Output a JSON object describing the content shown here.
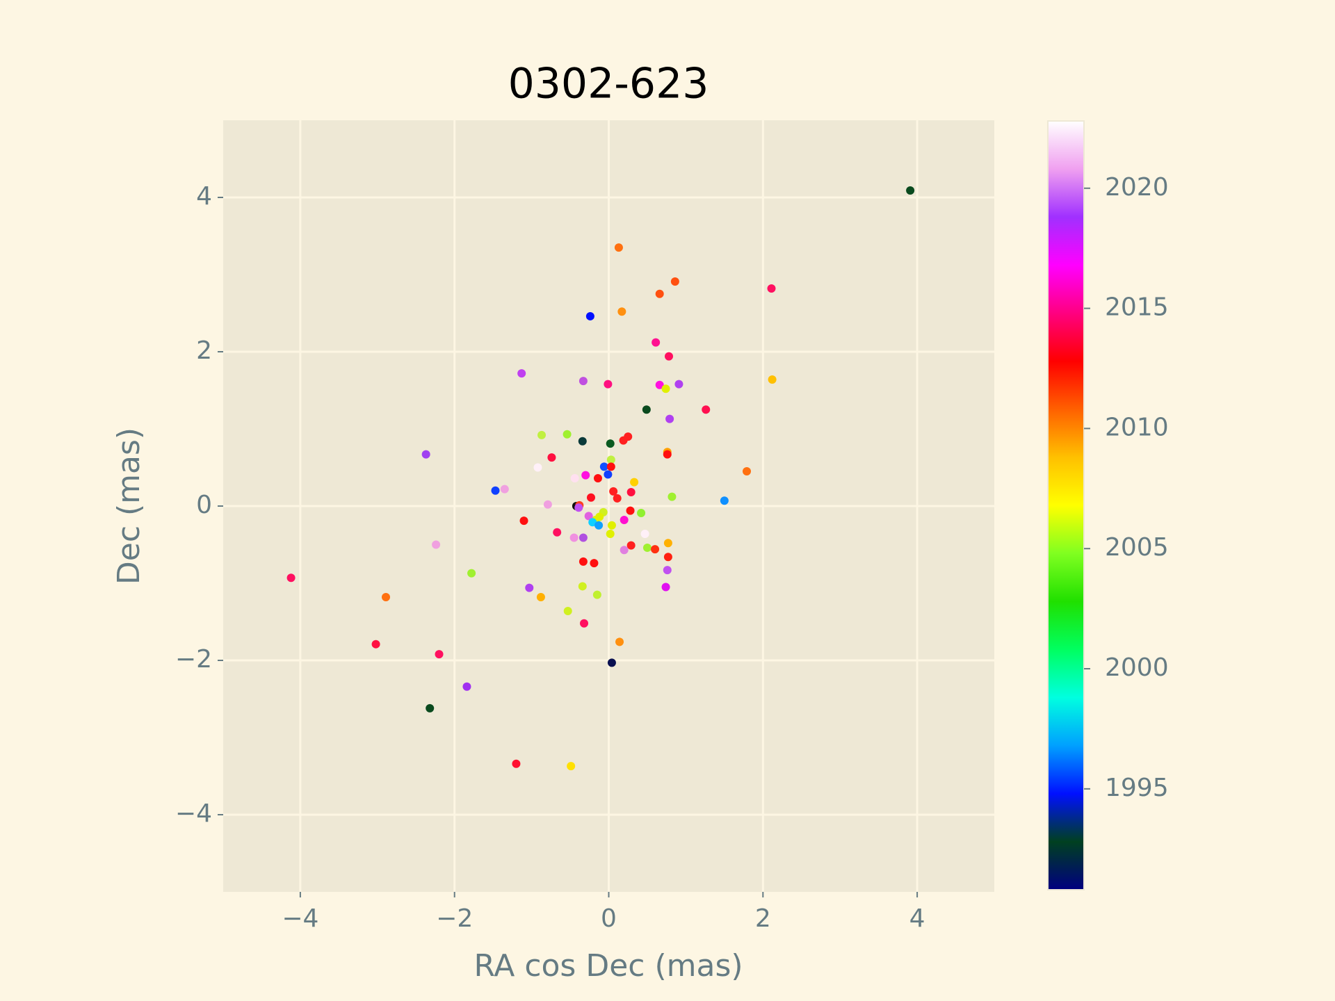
{
  "chart_data": {
    "type": "scatter",
    "title": "0302-623",
    "x_label": "RA cos Dec (mas)",
    "y_label": "Dec (mas)",
    "xlim": [
      -5,
      5
    ],
    "ylim": [
      -5,
      5
    ],
    "xticks": [
      {
        "value": -4,
        "label": "−4"
      },
      {
        "value": -2,
        "label": "−2"
      },
      0,
      2,
      4
    ],
    "yticks": [
      {
        "value": -4,
        "label": "−4"
      },
      {
        "value": -2,
        "label": "−2"
      },
      0,
      2,
      4
    ],
    "grid": true,
    "x": [
      3.91,
      0.13,
      0.86,
      2.11,
      0.66,
      -0.24,
      0.17,
      0.61,
      0.78,
      -1.13,
      -0.33,
      -0.01,
      0.66,
      0.91,
      0.74,
      2.12,
      0.49,
      1.26,
      0.79,
      -0.87,
      -0.54,
      -0.34,
      0.02,
      0.25,
      0.19,
      -2.37,
      0.76,
      0.76,
      -0.74,
      0.03,
      -0.06,
      0.03,
      -0.92,
      -0.01,
      -0.3,
      -0.44,
      -0.14,
      0.33,
      -1.47,
      -1.35,
      0.06,
      0.29,
      -0.23,
      0.11,
      0.82,
      1.5,
      1.79,
      -0.79,
      -0.42,
      -0.38,
      -0.39,
      -0.07,
      0.28,
      0.42,
      -1.1,
      -0.12,
      -0.17,
      -0.26,
      0.2,
      -0.21,
      -0.13,
      0.04,
      -0.67,
      0.02,
      0.47,
      -0.45,
      -0.33,
      -2.24,
      0.77,
      0.29,
      0.2,
      0.5,
      0.6,
      0.77,
      -0.33,
      -0.19,
      0.76,
      -4.12,
      -1.78,
      -1.03,
      -0.34,
      0.74,
      -2.89,
      -0.88,
      -0.15,
      -0.53,
      -0.32,
      0.14,
      -3.02,
      -2.2,
      0.04,
      -1.84,
      -2.32,
      -1.2,
      -0.49
    ],
    "y": [
      4.09,
      3.35,
      2.91,
      2.82,
      2.75,
      2.46,
      2.52,
      2.12,
      1.94,
      1.72,
      1.62,
      1.58,
      1.57,
      1.58,
      1.52,
      1.64,
      1.25,
      1.25,
      1.13,
      0.92,
      0.93,
      0.84,
      0.81,
      0.9,
      0.85,
      0.67,
      0.7,
      0.67,
      0.63,
      0.6,
      0.51,
      0.51,
      0.5,
      0.41,
      0.4,
      0.36,
      0.36,
      0.31,
      0.2,
      0.22,
      0.19,
      0.18,
      0.11,
      0.1,
      0.12,
      0.07,
      0.45,
      0.02,
      0.0,
      0.01,
      -0.02,
      -0.08,
      -0.06,
      -0.09,
      -0.19,
      -0.14,
      -0.18,
      -0.13,
      -0.18,
      -0.21,
      -0.25,
      -0.25,
      -0.34,
      -0.36,
      -0.36,
      -0.41,
      -0.41,
      -0.5,
      -0.48,
      -0.51,
      -0.57,
      -0.54,
      -0.56,
      -0.66,
      -0.72,
      -0.74,
      -0.83,
      -0.93,
      -0.87,
      -1.06,
      -1.04,
      -1.05,
      -1.18,
      -1.18,
      -1.15,
      -1.36,
      -1.52,
      -1.76,
      -1.79,
      -1.92,
      -2.03,
      -2.34,
      -2.62,
      -3.34,
      -3.37
    ],
    "colors": [
      "#0a4a1e",
      "#ff7010",
      "#ff5010",
      "#ff1060",
      "#ff5010",
      "#0010ff",
      "#ff9010",
      "#ff1090",
      "#ff1060",
      "#c040f0",
      "#c050e0",
      "#ff1080",
      "#ff10e0",
      "#b040f0",
      "#e0f000",
      "#ffc000",
      "#0a4a1e",
      "#ff1050",
      "#b040f0",
      "#c0f040",
      "#a0f030",
      "#0a3a3a",
      "#0a5a20",
      "#ff2020",
      "#ff2020",
      "#a040f0",
      "#ffa000",
      "#ff1010",
      "#ff1040",
      "#c0f040",
      "#1050ff",
      "#ff1010",
      "#fff0f8",
      "#1040ff",
      "#ff10e0",
      "#ffe0f0",
      "#ff1010",
      "#ffd000",
      "#1040ff",
      "#f0a0e0",
      "#ff2020",
      "#ff1040",
      "#ff1020",
      "#ff2020",
      "#a0f030",
      "#1090ff",
      "#ff7010",
      "#f0a0e0",
      "#101010",
      "#ff4020",
      "#c050f0",
      "#d0f020",
      "#ff1010",
      "#90f030",
      "#ff1010",
      "#e0f000",
      "#e0f000",
      "#e060e0",
      "#ff10d0",
      "#10d0ff",
      "#10a0ff",
      "#e0f000",
      "#ff1060",
      "#e0f000",
      "#fff0f8",
      "#f090e0",
      "#b050e0",
      "#f0a0e0",
      "#ffb000",
      "#ff2020",
      "#e080e0",
      "#a0f030",
      "#ff3010",
      "#ff2010",
      "#ff1010",
      "#ff1010",
      "#c050f0",
      "#ff1060",
      "#a0f030",
      "#b040f0",
      "#d0f020",
      "#e010f0",
      "#ff7010",
      "#ffb000",
      "#c0f030",
      "#d0f020",
      "#ff1060",
      "#ff9010",
      "#ff1040",
      "#ff1060",
      "#0a1050",
      "#a030f0",
      "#0a4a1e",
      "#ff1030",
      "#ffe000"
    ],
    "colorbar": {
      "clim": [
        1990.8,
        2022.8
      ],
      "ticks": [
        1995,
        2000,
        2005,
        2010,
        2015,
        2020
      ],
      "colormap": [
        "#000080",
        "#004020",
        "#0010ff",
        "#00a0ff",
        "#00ffe0",
        "#00ff60",
        "#20e000",
        "#80ff20",
        "#ffff00",
        "#ffc000",
        "#ff6000",
        "#ff0000",
        "#ff0080",
        "#ff00ff",
        "#a030ff",
        "#f0a0f0",
        "#ffffff"
      ]
    }
  }
}
